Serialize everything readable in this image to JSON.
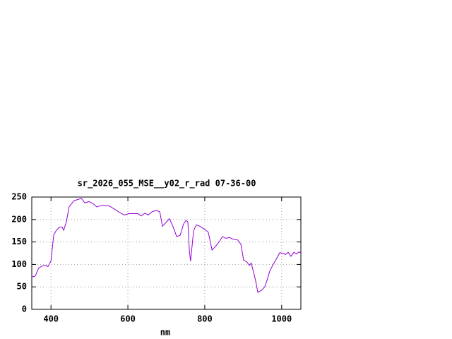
{
  "chart_data": {
    "type": "line",
    "title": "sr_2026_055_MSE__y02_r_rad 07-36-00",
    "x_label": "nm",
    "x": [
      350,
      359,
      368,
      378,
      387,
      392,
      400,
      407,
      414,
      422,
      429,
      433,
      440,
      447,
      460,
      479,
      488,
      499,
      510,
      519,
      534,
      552,
      567,
      580,
      591,
      602,
      626,
      635,
      644,
      653,
      664,
      675,
      683,
      690,
      701,
      708,
      717,
      727,
      736,
      745,
      751,
      756,
      760,
      763,
      771,
      778,
      787,
      800,
      809,
      819,
      828,
      837,
      846,
      855,
      864,
      874,
      885,
      894,
      901,
      910,
      916,
      921,
      932,
      938,
      947,
      956,
      962,
      969,
      978,
      988,
      995,
      1002,
      1010,
      1017,
      1024,
      1032,
      1039,
      1045,
      1050
    ],
    "series": [
      {
        "color": "#9400d3",
        "values": [
          72,
          74,
          92,
          97,
          98,
          95,
          108,
          165,
          176,
          183,
          183,
          176,
          195,
          228,
          242,
          247,
          237,
          240,
          235,
          228,
          232,
          230,
          222,
          215,
          210,
          213,
          213,
          208,
          214,
          210,
          218,
          220,
          217,
          185,
          195,
          202,
          185,
          162,
          165,
          190,
          198,
          195,
          130,
          107,
          175,
          188,
          185,
          178,
          172,
          132,
          140,
          150,
          162,
          158,
          160,
          156,
          155,
          145,
          110,
          105,
          98,
          103,
          65,
          38,
          42,
          50,
          65,
          85,
          100,
          115,
          126,
          125,
          122,
          127,
          118,
          127,
          123,
          128,
          126
        ]
      }
    ],
    "xlim": [
      350,
      1050
    ],
    "ylim": [
      0,
      250
    ],
    "xticks": [
      400,
      600,
      800,
      1000
    ],
    "yticks": [
      0,
      50,
      100,
      150,
      200,
      250
    ],
    "grid": true
  }
}
